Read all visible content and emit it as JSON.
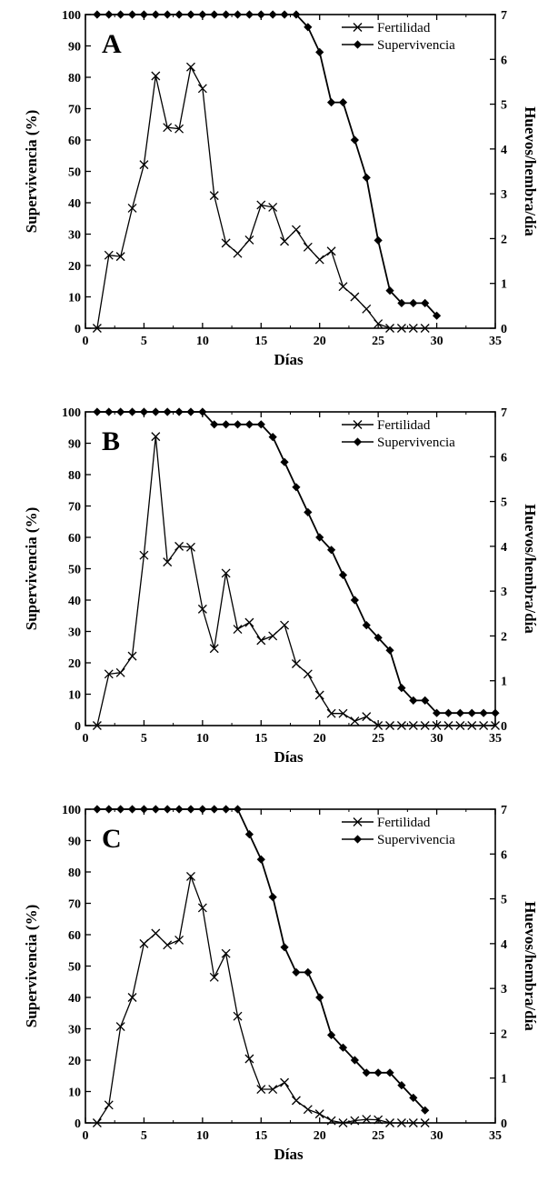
{
  "chart_data": [
    {
      "type": "line",
      "panel_label": "A",
      "xlabel": "Días",
      "ylabel": "Supervivencia (%)",
      "y2label": "Huevos/hembra/día",
      "xlim": [
        0,
        35
      ],
      "ylim": [
        0,
        100
      ],
      "y2lim": [
        0,
        7
      ],
      "xticks": [
        0,
        5,
        10,
        15,
        20,
        25,
        30,
        35
      ],
      "yticks": [
        0,
        10,
        20,
        30,
        40,
        50,
        60,
        70,
        80,
        90,
        100
      ],
      "y2ticks": [
        0,
        1,
        2,
        3,
        4,
        5,
        6,
        7
      ],
      "legend_position": "top-right",
      "series": [
        {
          "name": "Fertilidad",
          "axis": "right",
          "marker": "x",
          "x": [
            1,
            2,
            3,
            4,
            5,
            6,
            7,
            8,
            9,
            10,
            11,
            12,
            13,
            14,
            15,
            16,
            17,
            18,
            19,
            20,
            21,
            22,
            23,
            24,
            25,
            26,
            27,
            28,
            29
          ],
          "y": [
            0,
            1.63,
            1.6,
            2.68,
            3.65,
            5.63,
            4.48,
            4.45,
            5.83,
            5.35,
            2.96,
            1.9,
            1.67,
            1.97,
            2.75,
            2.7,
            1.94,
            2.2,
            1.81,
            1.53,
            1.72,
            0.93,
            0.7,
            0.43,
            0.1,
            0,
            0,
            0,
            0
          ]
        },
        {
          "name": "Supervivencia",
          "axis": "left",
          "marker": "diamond",
          "x": [
            1,
            2,
            3,
            4,
            5,
            6,
            7,
            8,
            9,
            10,
            11,
            12,
            13,
            14,
            15,
            16,
            17,
            18,
            19,
            20,
            21,
            22,
            23,
            24,
            25,
            26,
            27,
            28,
            29,
            30
          ],
          "y": [
            100,
            100,
            100,
            100,
            100,
            100,
            100,
            100,
            100,
            100,
            100,
            100,
            100,
            100,
            100,
            100,
            100,
            100,
            96,
            88,
            72,
            72,
            60,
            48,
            28,
            12,
            8,
            8,
            8,
            4
          ]
        }
      ]
    },
    {
      "type": "line",
      "panel_label": "B",
      "xlabel": "Días",
      "ylabel": "Supervivencia (%)",
      "y2label": "Huevos/hembra/día",
      "xlim": [
        0,
        35
      ],
      "ylim": [
        0,
        100
      ],
      "y2lim": [
        0,
        7
      ],
      "xticks": [
        0,
        5,
        10,
        15,
        20,
        25,
        30,
        35
      ],
      "yticks": [
        0,
        10,
        20,
        30,
        40,
        50,
        60,
        70,
        80,
        90,
        100
      ],
      "y2ticks": [
        0,
        1,
        2,
        3,
        4,
        5,
        6,
        7
      ],
      "legend_position": "top-right",
      "series": [
        {
          "name": "Fertilidad",
          "axis": "right",
          "marker": "x",
          "x": [
            1,
            2,
            3,
            4,
            5,
            6,
            7,
            8,
            9,
            10,
            11,
            12,
            13,
            14,
            15,
            16,
            17,
            18,
            19,
            20,
            21,
            22,
            23,
            24,
            25,
            26,
            27,
            28,
            29,
            30,
            31,
            32,
            33,
            34,
            35
          ],
          "y": [
            0,
            1.15,
            1.18,
            1.55,
            3.8,
            6.45,
            3.65,
            4,
            3.98,
            2.6,
            1.72,
            3.4,
            2.15,
            2.3,
            1.9,
            2,
            2.24,
            1.38,
            1.15,
            0.68,
            0.27,
            0.27,
            0.1,
            0.2,
            0,
            0,
            0,
            0,
            0,
            0,
            0,
            0,
            0,
            0,
            0
          ]
        },
        {
          "name": "Supervivencia",
          "axis": "left",
          "marker": "diamond",
          "x": [
            1,
            2,
            3,
            4,
            5,
            6,
            7,
            8,
            9,
            10,
            11,
            12,
            13,
            14,
            15,
            16,
            17,
            18,
            19,
            20,
            21,
            22,
            23,
            24,
            25,
            26,
            27,
            28,
            29,
            30,
            31,
            32,
            33,
            34,
            35
          ],
          "y": [
            100,
            100,
            100,
            100,
            100,
            100,
            100,
            100,
            100,
            100,
            96,
            96,
            96,
            96,
            96,
            92,
            84,
            76,
            68,
            60,
            56,
            48,
            40,
            32,
            28,
            24,
            12,
            8,
            8,
            4,
            4,
            4,
            4,
            4,
            4
          ]
        }
      ]
    },
    {
      "type": "line",
      "panel_label": "C",
      "xlabel": "Días",
      "ylabel": "Supervivencia (%)",
      "y2label": "Huevos/hembra/día",
      "xlim": [
        0,
        35
      ],
      "ylim": [
        0,
        100
      ],
      "y2lim": [
        0,
        7
      ],
      "xticks": [
        0,
        5,
        10,
        15,
        20,
        25,
        30,
        35
      ],
      "yticks": [
        0,
        10,
        20,
        30,
        40,
        50,
        60,
        70,
        80,
        90,
        100
      ],
      "y2ticks": [
        0,
        1,
        2,
        3,
        4,
        5,
        6,
        7
      ],
      "legend_position": "top-right",
      "series": [
        {
          "name": "Fertilidad",
          "axis": "right",
          "marker": "x",
          "x": [
            1,
            2,
            3,
            4,
            5,
            6,
            7,
            8,
            9,
            10,
            11,
            12,
            13,
            14,
            15,
            16,
            17,
            18,
            19,
            20,
            21,
            22,
            23,
            24,
            25,
            26,
            27,
            28,
            29
          ],
          "y": [
            0,
            0.4,
            2.15,
            2.8,
            4,
            4.23,
            3.97,
            4.08,
            5.5,
            4.8,
            3.25,
            3.78,
            2.38,
            1.43,
            0.75,
            0.75,
            0.9,
            0.5,
            0.3,
            0.2,
            0.05,
            0,
            0.05,
            0.08,
            0.07,
            0,
            0,
            0,
            0
          ]
        },
        {
          "name": "Supervivencia",
          "axis": "left",
          "marker": "diamond",
          "x": [
            1,
            2,
            3,
            4,
            5,
            6,
            7,
            8,
            9,
            10,
            11,
            12,
            13,
            14,
            15,
            16,
            17,
            18,
            19,
            20,
            21,
            22,
            23,
            24,
            25,
            26,
            27,
            28,
            29
          ],
          "y": [
            100,
            100,
            100,
            100,
            100,
            100,
            100,
            100,
            100,
            100,
            100,
            100,
            100,
            92,
            84,
            72,
            56,
            48,
            48,
            40,
            28,
            24,
            20,
            16,
            16,
            16,
            12,
            8,
            4
          ]
        }
      ]
    }
  ]
}
